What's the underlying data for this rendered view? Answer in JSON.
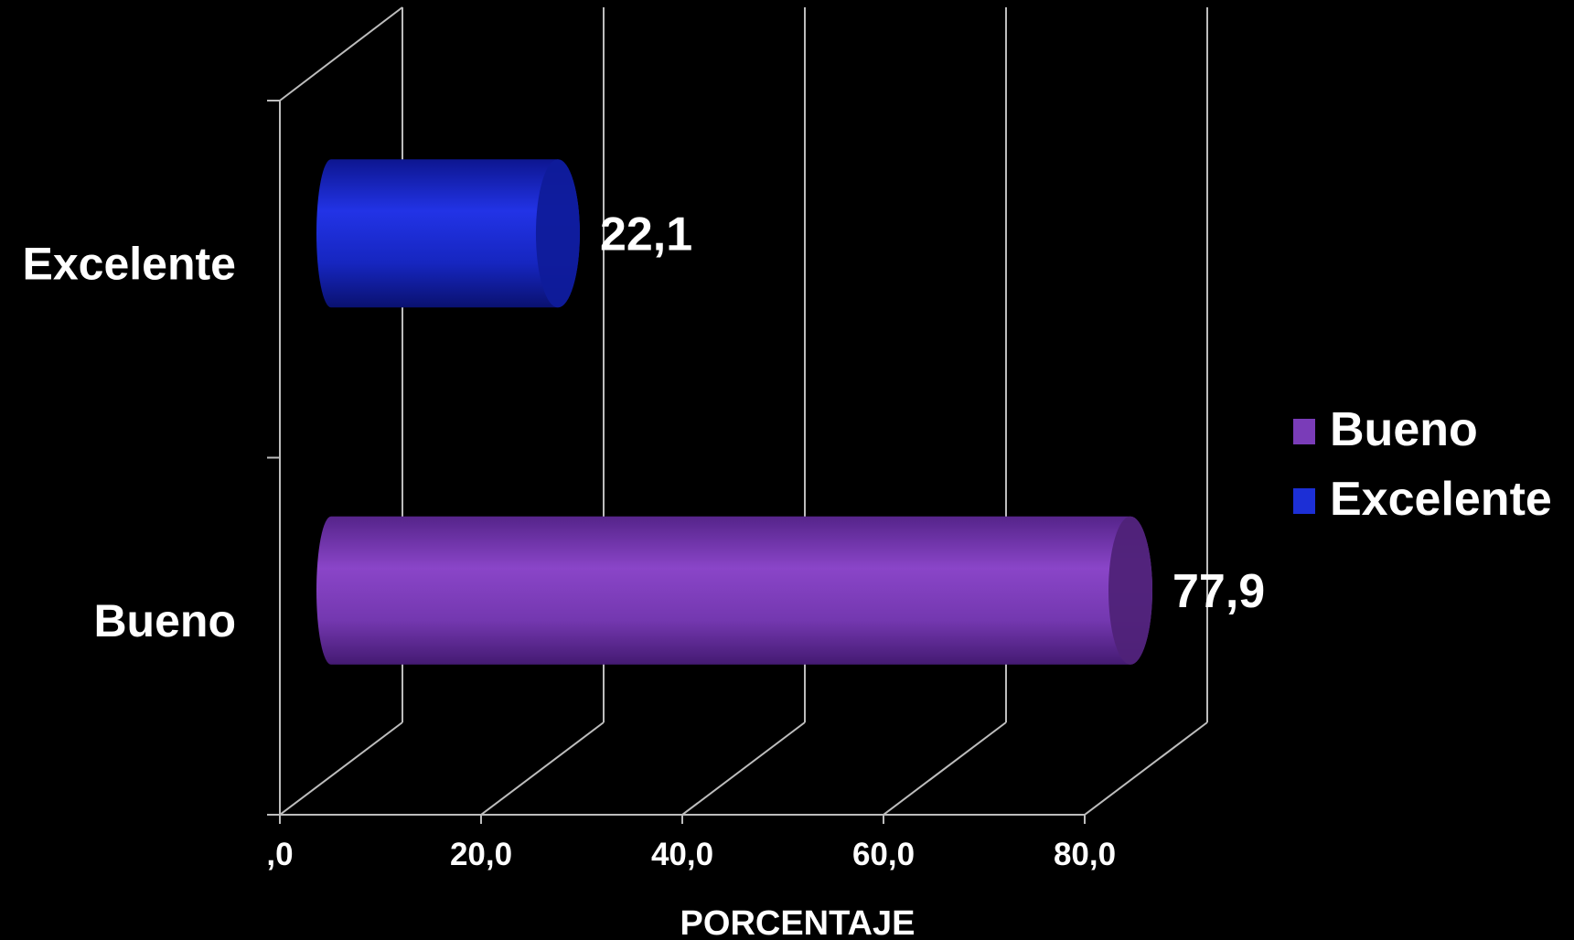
{
  "chart_data": {
    "type": "bar",
    "orientation": "horizontal",
    "style": "3d-cylinder",
    "categories": [
      "Excelente",
      "Bueno"
    ],
    "values": [
      22.1,
      77.9
    ],
    "value_labels": [
      "22,1",
      "77,9"
    ],
    "colors": [
      "#1c2fd6",
      "#7a3cb8"
    ],
    "xlabel": "PORCENTAJE",
    "ylabel": "",
    "title": "",
    "xlim": [
      0,
      80
    ],
    "ticks": [
      0,
      20,
      40,
      60,
      80
    ],
    "tick_labels": [
      ",0",
      "20,0",
      "40,0",
      "60,0",
      "80,0"
    ],
    "grid": true,
    "legend": {
      "position": "right",
      "entries": [
        {
          "name": "Bueno",
          "color": "#7a3cb8"
        },
        {
          "name": "Excelente",
          "color": "#1c2fd6"
        }
      ]
    }
  }
}
